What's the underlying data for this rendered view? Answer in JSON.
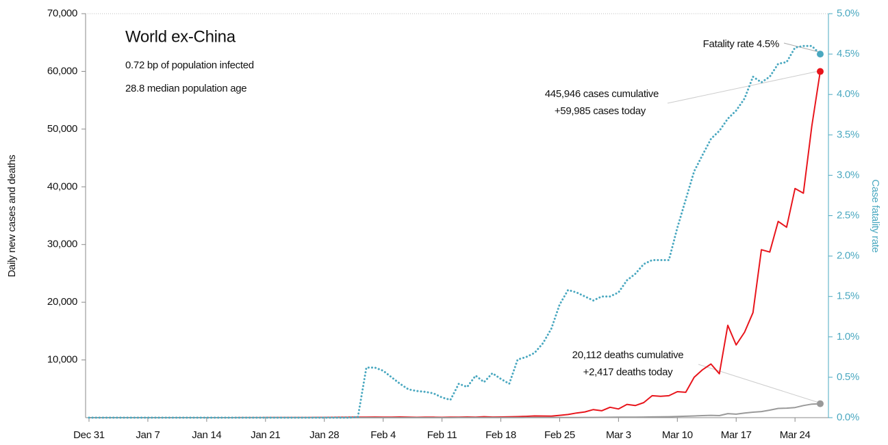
{
  "chart_data": {
    "type": "line",
    "title": "World ex-China",
    "subtitle": [
      "0.72 bp of population infected",
      "28.8 median population age"
    ],
    "ylabel": "Daily new cases and deaths",
    "y2label": "Case fatality rate",
    "annotations": {
      "rate": "Fatality rate 4.5%",
      "cases": [
        "445,946 cases cumulative",
        "+59,985 cases today"
      ],
      "deaths": [
        "20,112 deaths cumulative",
        "+2,417 deaths today"
      ]
    },
    "categories": [
      "Dec 31",
      null,
      null,
      null,
      null,
      null,
      null,
      "Jan 7",
      null,
      null,
      null,
      null,
      null,
      null,
      "Jan 14",
      null,
      null,
      null,
      null,
      null,
      null,
      "Jan 21",
      null,
      null,
      null,
      null,
      null,
      null,
      "Jan 28",
      null,
      null,
      null,
      null,
      null,
      null,
      "Feb 4",
      null,
      null,
      null,
      null,
      null,
      null,
      "Feb 11",
      null,
      null,
      null,
      null,
      null,
      null,
      "Feb 18",
      null,
      null,
      null,
      null,
      null,
      null,
      "Feb 25",
      null,
      null,
      null,
      null,
      null,
      null,
      "Mar 3",
      null,
      null,
      null,
      null,
      null,
      null,
      "Mar 10",
      null,
      null,
      null,
      null,
      null,
      null,
      "Mar 17",
      null,
      null,
      null,
      null,
      null,
      null,
      "Mar 24",
      null,
      null,
      null
    ],
    "series": [
      {
        "name": "Cases",
        "color": "#e8141b",
        "style": "solid",
        "axis": "y",
        "values": [
          0,
          0,
          0,
          0,
          0,
          0,
          0,
          0,
          0,
          0,
          0,
          0,
          0,
          0,
          0,
          0,
          5,
          5,
          10,
          10,
          15,
          20,
          25,
          30,
          30,
          40,
          40,
          50,
          50,
          60,
          70,
          80,
          90,
          100,
          110,
          90,
          100,
          120,
          80,
          60,
          100,
          80,
          60,
          100,
          90,
          120,
          100,
          160,
          110,
          120,
          140,
          180,
          220,
          300,
          280,
          260,
          400,
          550,
          800,
          1000,
          1400,
          1200,
          1800,
          1500,
          2300,
          2100,
          2600,
          3800,
          3700,
          3800,
          4500,
          4400,
          7000,
          8300,
          9300,
          7600,
          16000,
          12600,
          14800,
          18200,
          29100,
          28700,
          34000,
          33000,
          39700,
          38900,
          50500,
          59985
        ]
      },
      {
        "name": "Deaths",
        "color": "#999999",
        "style": "solid",
        "axis": "y",
        "values": [
          0,
          0,
          0,
          0,
          0,
          0,
          0,
          0,
          0,
          0,
          0,
          0,
          0,
          0,
          0,
          0,
          0,
          0,
          0,
          0,
          0,
          0,
          0,
          0,
          0,
          0,
          0,
          0,
          0,
          0,
          0,
          0,
          1,
          1,
          1,
          1,
          2,
          2,
          2,
          3,
          3,
          4,
          4,
          5,
          6,
          7,
          8,
          9,
          10,
          12,
          14,
          16,
          18,
          20,
          22,
          25,
          30,
          35,
          40,
          45,
          50,
          60,
          70,
          80,
          90,
          100,
          110,
          130,
          150,
          170,
          200,
          250,
          300,
          350,
          400,
          350,
          700,
          600,
          800,
          950,
          1050,
          1300,
          1600,
          1650,
          1750,
          2100,
          2350,
          2417
        ]
      },
      {
        "name": "Fatality rate",
        "color": "#4aa8c0",
        "style": "dotted",
        "axis": "y2",
        "values": [
          0,
          0,
          0,
          0,
          0,
          0,
          0,
          0,
          0,
          0,
          0,
          0,
          0,
          0,
          0,
          0,
          0,
          0,
          0,
          0,
          0,
          0,
          0,
          0,
          0,
          0,
          0,
          0,
          0,
          0,
          0,
          0,
          0.01,
          0.62,
          0.62,
          0.58,
          0.5,
          0.42,
          0.35,
          0.33,
          0.32,
          0.3,
          0.25,
          0.22,
          0.42,
          0.38,
          0.52,
          0.44,
          0.55,
          0.48,
          0.42,
          0.72,
          0.75,
          0.8,
          0.92,
          1.1,
          1.4,
          1.58,
          1.55,
          1.5,
          1.45,
          1.5,
          1.5,
          1.55,
          1.7,
          1.78,
          1.9,
          1.95,
          1.95,
          1.95,
          2.35,
          2.7,
          3.05,
          3.25,
          3.45,
          3.55,
          3.7,
          3.8,
          3.95,
          4.22,
          4.15,
          4.22,
          4.38,
          4.4,
          4.58,
          4.6,
          4.6,
          4.5
        ]
      }
    ],
    "ylim": [
      0,
      70000
    ],
    "yticks": [
      {
        "value": 10000,
        "label": "10,000"
      },
      {
        "value": 20000,
        "label": "20,000"
      },
      {
        "value": 30000,
        "label": "30,000"
      },
      {
        "value": 40000,
        "label": "40,000"
      },
      {
        "value": 50000,
        "label": "50,000"
      },
      {
        "value": 60000,
        "label": "60,000"
      },
      {
        "value": 70000,
        "label": "70,000"
      }
    ],
    "y2lim": [
      0,
      5
    ],
    "y2ticks": [
      {
        "value": 0,
        "label": "0.0%"
      },
      {
        "value": 0.5,
        "label": "0.5%"
      },
      {
        "value": 1,
        "label": "1.0%"
      },
      {
        "value": 1.5,
        "label": "1.5%"
      },
      {
        "value": 2,
        "label": "2.0%"
      },
      {
        "value": 2.5,
        "label": "2.5%"
      },
      {
        "value": 3,
        "label": "3.0%"
      },
      {
        "value": 3.5,
        "label": "3.5%"
      },
      {
        "value": 4,
        "label": "4.0%"
      },
      {
        "value": 4.5,
        "label": "4.5%"
      },
      {
        "value": 5,
        "label": "5.0%"
      }
    ],
    "y2color": "#4aa8c0",
    "grid": false
  }
}
